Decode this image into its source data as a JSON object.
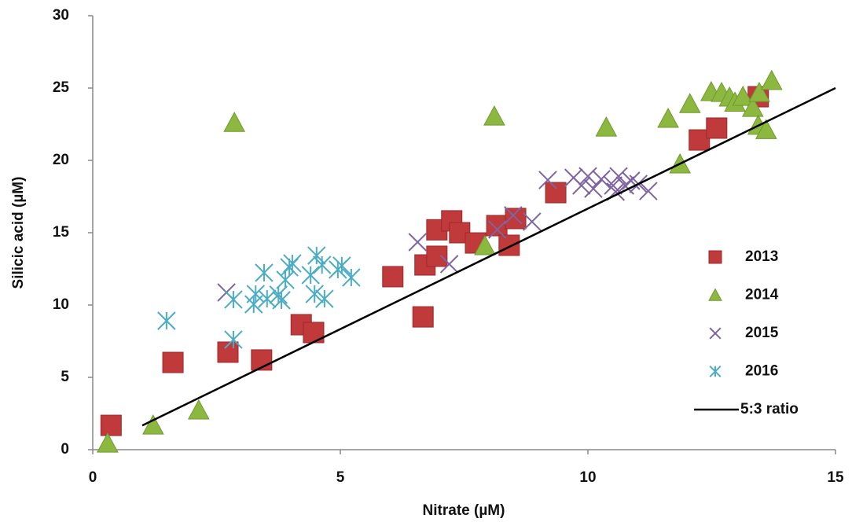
{
  "chart_data": {
    "type": "scatter",
    "xlabel": "Nitrate (µM)",
    "ylabel": "Silicic acid (µM)",
    "xlim": [
      0,
      15
    ],
    "ylim": [
      0,
      30
    ],
    "xticks": [
      0,
      5,
      10,
      15
    ],
    "yticks": [
      0,
      5,
      10,
      15,
      20,
      25,
      30
    ],
    "grid": false,
    "legend": "right",
    "series": [
      {
        "name": "2013",
        "color": "#c0393b",
        "marker": "square",
        "x": [
          0.37,
          1.62,
          2.73,
          3.41,
          4.21,
          4.46,
          6.06,
          6.67,
          6.71,
          6.95,
          6.95,
          7.25,
          7.41,
          7.73,
          8.16,
          8.41,
          8.54,
          9.35,
          12.25,
          12.6,
          13.44
        ],
        "values": [
          1.68,
          6.03,
          6.74,
          6.2,
          8.64,
          8.1,
          11.96,
          9.18,
          12.77,
          15.2,
          13.37,
          15.82,
          15.0,
          14.29,
          15.49,
          14.13,
          15.98,
          17.77,
          21.41,
          22.23,
          24.4
        ]
      },
      {
        "name": "2014",
        "color": "#8db840",
        "marker": "triangle",
        "x": [
          0.3,
          1.22,
          2.14,
          2.86,
          7.92,
          8.11,
          10.37,
          11.62,
          11.86,
          12.06,
          12.49,
          12.7,
          12.86,
          12.97,
          13.13,
          13.33,
          13.46,
          13.44,
          13.6,
          13.71
        ],
        "values": [
          0.43,
          1.68,
          2.72,
          22.6,
          14.08,
          23.04,
          22.28,
          22.88,
          19.73,
          23.9,
          24.73,
          24.67,
          24.35,
          24.0,
          24.4,
          23.64,
          24.67,
          22.4,
          22.1,
          25.5
        ]
      },
      {
        "name": "2015",
        "color": "#7e64a0",
        "marker": "x",
        "x": [
          2.7,
          6.56,
          7.2,
          8.17,
          8.49,
          8.87,
          9.19,
          9.71,
          9.87,
          10.0,
          10.11,
          10.27,
          10.51,
          10.62,
          10.75,
          10.87,
          11.02,
          11.22,
          10.56
        ],
        "values": [
          10.87,
          14.35,
          12.83,
          15.22,
          16.2,
          15.76,
          18.64,
          18.8,
          18.26,
          18.9,
          18.04,
          18.7,
          18.26,
          18.9,
          18.26,
          18.59,
          18.37,
          17.88,
          17.83
        ]
      },
      {
        "name": "2016",
        "color": "#4bacc6",
        "marker": "asterisk",
        "x": [
          1.49,
          2.84,
          2.84,
          3.25,
          3.29,
          3.46,
          3.52,
          3.75,
          3.81,
          3.89,
          3.97,
          4.03,
          4.4,
          4.48,
          4.52,
          4.63,
          4.68,
          4.95,
          5.03,
          5.22
        ],
        "values": [
          8.91,
          7.61,
          10.38,
          10.05,
          10.76,
          12.23,
          10.43,
          10.71,
          10.33,
          11.74,
          12.61,
          12.88,
          12.07,
          10.76,
          13.42,
          12.77,
          10.43,
          12.45,
          12.72,
          11.9
        ]
      },
      {
        "name": "5:3 ratio",
        "color": "#000000",
        "marker": "line",
        "x": [
          1,
          15
        ],
        "values": [
          1.67,
          25
        ]
      }
    ]
  }
}
